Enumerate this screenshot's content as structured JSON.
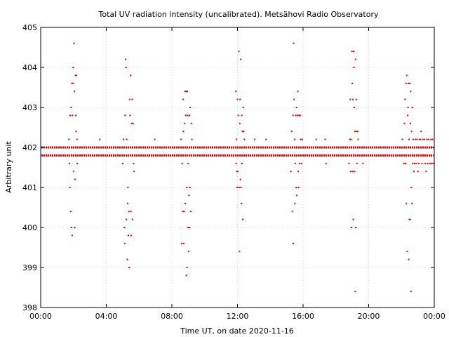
{
  "chart_data": {
    "type": "scatter",
    "title": "Total UV radiation intensity (uncalibrated). Metsähovi Radio Observatory",
    "xlabel": "Time UT, on date 2020-11-16",
    "ylabel": "Arbitrary unit",
    "xlim": [
      0,
      24
    ],
    "ylim": [
      398,
      405
    ],
    "x_ticks": [
      {
        "value": 0,
        "label": "00:00"
      },
      {
        "value": 4,
        "label": "04:00"
      },
      {
        "value": 8,
        "label": "08:00"
      },
      {
        "value": 12,
        "label": "12:00"
      },
      {
        "value": 16,
        "label": "16:00"
      },
      {
        "value": 20,
        "label": "20:00"
      },
      {
        "value": 24,
        "label": "00:00"
      }
    ],
    "y_ticks": [
      398,
      399,
      400,
      401,
      402,
      403,
      404,
      405
    ],
    "grid": true,
    "marker_color": "#e00000",
    "baseline_levels": [
      401.8,
      402.0
    ],
    "points": [
      [
        1.72,
        402.2
      ],
      [
        1.75,
        401.6
      ],
      [
        1.78,
        401.0
      ],
      [
        1.8,
        402.8
      ],
      [
        1.83,
        400.4
      ],
      [
        1.85,
        403.0
      ],
      [
        1.87,
        400.0
      ],
      [
        1.9,
        403.6
      ],
      [
        1.92,
        399.8
      ],
      [
        1.94,
        402.8
      ],
      [
        1.96,
        403.6
      ],
      [
        1.98,
        404.0
      ],
      [
        2.0,
        401.4
      ],
      [
        2.03,
        404.6
      ],
      [
        2.05,
        403.4
      ],
      [
        2.07,
        400.0
      ],
      [
        2.1,
        401.2
      ],
      [
        2.12,
        403.8
      ],
      [
        2.14,
        402.8
      ],
      [
        2.16,
        402.4
      ],
      [
        2.18,
        403.8
      ],
      [
        2.21,
        402.2
      ],
      [
        2.23,
        401.6
      ],
      [
        3.6,
        402.2
      ],
      [
        5.0,
        401.6
      ],
      [
        5.05,
        402.2
      ],
      [
        5.1,
        400.0
      ],
      [
        5.12,
        399.6
      ],
      [
        5.15,
        402.8
      ],
      [
        5.18,
        404.2
      ],
      [
        5.2,
        404.0
      ],
      [
        5.22,
        400.2
      ],
      [
        5.25,
        402.2
      ],
      [
        5.28,
        399.2
      ],
      [
        5.3,
        400.6
      ],
      [
        5.32,
        401.0
      ],
      [
        5.35,
        399.8
      ],
      [
        5.38,
        400.4
      ],
      [
        5.4,
        399.0
      ],
      [
        5.42,
        403.2
      ],
      [
        5.45,
        402.8
      ],
      [
        5.48,
        403.8
      ],
      [
        5.5,
        400.4
      ],
      [
        5.52,
        399.8
      ],
      [
        5.55,
        402.6
      ],
      [
        5.58,
        403.2
      ],
      [
        5.6,
        400.2
      ],
      [
        5.63,
        402.6
      ],
      [
        5.66,
        401.6
      ],
      [
        5.7,
        401.4
      ],
      [
        6.95,
        402.2
      ],
      [
        8.55,
        402.2
      ],
      [
        8.6,
        399.6
      ],
      [
        8.63,
        401.6
      ],
      [
        8.66,
        400.4
      ],
      [
        8.68,
        403.2
      ],
      [
        8.7,
        402.4
      ],
      [
        8.72,
        399.6
      ],
      [
        8.75,
        400.4
      ],
      [
        8.78,
        402.6
      ],
      [
        8.8,
        403.4
      ],
      [
        8.82,
        400.6
      ],
      [
        8.84,
        402.8
      ],
      [
        8.86,
        403.4
      ],
      [
        8.88,
        398.8
      ],
      [
        8.9,
        401.0
      ],
      [
        8.92,
        399.0
      ],
      [
        8.94,
        403.4
      ],
      [
        8.96,
        402.8
      ],
      [
        8.98,
        400.0
      ],
      [
        9.0,
        401.6
      ],
      [
        9.02,
        399.4
      ],
      [
        9.04,
        400.8
      ],
      [
        9.06,
        402.8
      ],
      [
        9.08,
        400.0
      ],
      [
        9.1,
        401.0
      ],
      [
        9.12,
        403.0
      ],
      [
        9.15,
        400.4
      ],
      [
        9.18,
        402.6
      ],
      [
        9.22,
        402.2
      ],
      [
        11.9,
        403.4
      ],
      [
        11.92,
        401.6
      ],
      [
        11.94,
        402.2
      ],
      [
        11.96,
        401.4
      ],
      [
        11.98,
        401.0
      ],
      [
        12.0,
        403.2
      ],
      [
        12.02,
        401.4
      ],
      [
        12.05,
        402.8
      ],
      [
        12.08,
        404.4
      ],
      [
        12.1,
        401.0
      ],
      [
        12.12,
        399.4
      ],
      [
        12.14,
        402.6
      ],
      [
        12.16,
        403.2
      ],
      [
        12.18,
        401.2
      ],
      [
        12.2,
        404.2
      ],
      [
        12.22,
        401.0
      ],
      [
        12.24,
        400.6
      ],
      [
        12.26,
        402.8
      ],
      [
        12.28,
        401.6
      ],
      [
        12.3,
        402.4
      ],
      [
        12.32,
        400.2
      ],
      [
        12.35,
        403.0
      ],
      [
        12.38,
        402.4
      ],
      [
        12.42,
        402.2
      ],
      [
        13.05,
        402.2
      ],
      [
        13.75,
        402.2
      ],
      [
        15.25,
        401.4
      ],
      [
        15.3,
        402.4
      ],
      [
        15.34,
        400.4
      ],
      [
        15.38,
        402.8
      ],
      [
        15.4,
        399.6
      ],
      [
        15.42,
        404.6
      ],
      [
        15.45,
        403.2
      ],
      [
        15.48,
        402.2
      ],
      [
        15.5,
        400.6
      ],
      [
        15.52,
        401.6
      ],
      [
        15.55,
        402.8
      ],
      [
        15.58,
        401.0
      ],
      [
        15.6,
        403.0
      ],
      [
        15.62,
        400.8
      ],
      [
        15.65,
        402.8
      ],
      [
        15.68,
        403.4
      ],
      [
        15.7,
        401.4
      ],
      [
        15.72,
        401.0
      ],
      [
        15.75,
        402.8
      ],
      [
        15.78,
        401.6
      ],
      [
        15.82,
        402.8
      ],
      [
        15.85,
        402.2
      ],
      [
        15.9,
        401.6
      ],
      [
        15.95,
        402.2
      ],
      [
        16.8,
        402.2
      ],
      [
        17.35,
        402.2
      ],
      [
        17.4,
        401.6
      ],
      [
        18.8,
        401.6
      ],
      [
        18.85,
        402.2
      ],
      [
        18.88,
        403.2
      ],
      [
        18.9,
        401.4
      ],
      [
        18.92,
        402.2
      ],
      [
        18.95,
        400.0
      ],
      [
        18.98,
        404.4
      ],
      [
        19.0,
        403.6
      ],
      [
        19.02,
        401.4
      ],
      [
        19.04,
        403.2
      ],
      [
        19.06,
        400.2
      ],
      [
        19.08,
        404.4
      ],
      [
        19.1,
        404.0
      ],
      [
        19.12,
        403.0
      ],
      [
        19.14,
        401.4
      ],
      [
        19.16,
        402.4
      ],
      [
        19.18,
        398.4
      ],
      [
        19.2,
        404.2
      ],
      [
        19.22,
        400.0
      ],
      [
        19.24,
        403.2
      ],
      [
        19.26,
        402.4
      ],
      [
        19.28,
        401.6
      ],
      [
        19.32,
        402.4
      ],
      [
        19.36,
        402.2
      ],
      [
        19.65,
        401.6
      ],
      [
        22.05,
        402.2
      ],
      [
        22.15,
        401.6
      ],
      [
        22.18,
        402.6
      ],
      [
        22.22,
        403.2
      ],
      [
        22.25,
        401.6
      ],
      [
        22.28,
        403.6
      ],
      [
        22.3,
        400.6
      ],
      [
        22.32,
        403.8
      ],
      [
        22.35,
        399.4
      ],
      [
        22.38,
        402.8
      ],
      [
        22.4,
        403.0
      ],
      [
        22.42,
        403.6
      ],
      [
        22.44,
        399.2
      ],
      [
        22.46,
        402.2
      ],
      [
        22.48,
        400.2
      ],
      [
        22.5,
        403.6
      ],
      [
        22.52,
        400.2
      ],
      [
        22.54,
        402.6
      ],
      [
        22.56,
        403.4
      ],
      [
        22.58,
        398.4
      ],
      [
        22.6,
        401.0
      ],
      [
        22.62,
        402.4
      ],
      [
        22.64,
        400.6
      ],
      [
        22.66,
        403.0
      ],
      [
        22.68,
        401.6
      ],
      [
        22.7,
        401.8
      ],
      [
        22.72,
        402.2
      ],
      [
        22.75,
        401.4
      ],
      [
        22.8,
        401.6
      ],
      [
        22.85,
        402.2
      ],
      [
        22.9,
        401.6
      ],
      [
        22.95,
        402.2
      ],
      [
        23.0,
        401.4
      ],
      [
        23.05,
        401.6
      ],
      [
        23.1,
        402.2
      ],
      [
        23.15,
        402.2
      ],
      [
        23.2,
        402.4
      ],
      [
        23.25,
        401.6
      ],
      [
        23.3,
        402.2
      ],
      [
        23.35,
        401.8
      ],
      [
        23.4,
        402.2
      ],
      [
        23.45,
        401.6
      ],
      [
        23.5,
        401.4
      ],
      [
        23.55,
        402.2
      ],
      [
        23.6,
        401.6
      ],
      [
        23.65,
        402.2
      ],
      [
        23.7,
        401.8
      ],
      [
        23.75,
        401.6
      ],
      [
        23.8,
        402.2
      ],
      [
        23.85,
        401.6
      ],
      [
        23.9,
        402.2
      ],
      [
        23.95,
        401.6
      ]
    ]
  }
}
